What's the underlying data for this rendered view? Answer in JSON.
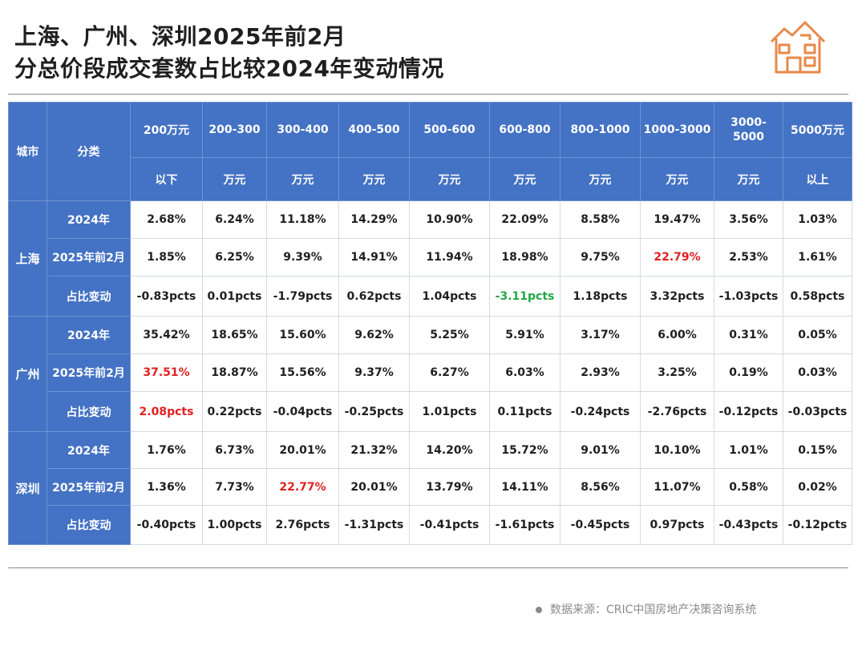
{
  "title": {
    "line1": "上海、广州、深圳2025年前2月",
    "line2": "分总价段成交套数占比较2024年变动情况"
  },
  "logo": {
    "icon": "house-icon",
    "color": "#e8894a"
  },
  "colors": {
    "header_bg": "#4472c4",
    "highlight_up": "#e02020",
    "highlight_down": "#22a845"
  },
  "chart_data": {
    "type": "table",
    "header": {
      "city_label": "城市",
      "category_label": "分类",
      "price_bands": [
        {
          "top": "200万元",
          "bottom": "以下"
        },
        {
          "top": "200-300",
          "bottom": "万元"
        },
        {
          "top": "300-400",
          "bottom": "万元"
        },
        {
          "top": "400-500",
          "bottom": "万元"
        },
        {
          "top": "500-600",
          "bottom": "万元"
        },
        {
          "top": "600-800",
          "bottom": "万元"
        },
        {
          "top": "800-1000",
          "bottom": "万元"
        },
        {
          "top": "1000-3000",
          "bottom": "万元"
        },
        {
          "top": "3000-5000",
          "bottom": "万元"
        },
        {
          "top": "5000万元",
          "bottom": "以上"
        }
      ]
    },
    "cities": [
      {
        "name": "上海",
        "rows": [
          {
            "label": "2024年",
            "values": [
              "2.68%",
              "6.24%",
              "11.18%",
              "14.29%",
              "10.90%",
              "22.09%",
              "8.58%",
              "19.47%",
              "3.56%",
              "1.03%"
            ]
          },
          {
            "label": "2025年前2月",
            "values": [
              "1.85%",
              "6.25%",
              "9.39%",
              "14.91%",
              "11.94%",
              "18.98%",
              "9.75%",
              "22.79%",
              "2.53%",
              "1.61%"
            ]
          },
          {
            "label": "占比变动",
            "values": [
              "-0.83pcts",
              "0.01pcts",
              "-1.79pcts",
              "0.62pcts",
              "1.04pcts",
              "-3.11pcts",
              "1.18pcts",
              "3.32pcts",
              "-1.03pcts",
              "0.58pcts"
            ]
          }
        ]
      },
      {
        "name": "广州",
        "rows": [
          {
            "label": "2024年",
            "values": [
              "35.42%",
              "18.65%",
              "15.60%",
              "9.62%",
              "5.25%",
              "5.91%",
              "3.17%",
              "6.00%",
              "0.31%",
              "0.05%"
            ]
          },
          {
            "label": "2025年前2月",
            "values": [
              "37.51%",
              "18.87%",
              "15.56%",
              "9.37%",
              "6.27%",
              "6.03%",
              "2.93%",
              "3.25%",
              "0.19%",
              "0.03%"
            ]
          },
          {
            "label": "占比变动",
            "values": [
              "2.08pcts",
              "0.22pcts",
              "-0.04pcts",
              "-0.25pcts",
              "1.01pcts",
              "0.11pcts",
              "-0.24pcts",
              "-2.76pcts",
              "-0.12pcts",
              "-0.03pcts"
            ]
          }
        ]
      },
      {
        "name": "深圳",
        "rows": [
          {
            "label": "2024年",
            "values": [
              "1.76%",
              "6.73%",
              "20.01%",
              "21.32%",
              "14.20%",
              "15.72%",
              "9.01%",
              "10.10%",
              "1.01%",
              "0.15%"
            ]
          },
          {
            "label": "2025年前2月",
            "values": [
              "1.36%",
              "7.73%",
              "22.77%",
              "20.01%",
              "13.79%",
              "14.11%",
              "8.56%",
              "11.07%",
              "0.58%",
              "0.02%"
            ]
          },
          {
            "label": "占比变动",
            "values": [
              "-0.40pcts",
              "1.00pcts",
              "2.76pcts",
              "-1.31pcts",
              "-0.41pcts",
              "-1.61pcts",
              "-0.45pcts",
              "0.97pcts",
              "-0.43pcts",
              "-0.12pcts"
            ]
          }
        ]
      }
    ],
    "highlights": [
      {
        "city": 0,
        "row": 1,
        "col": 7,
        "color": "red"
      },
      {
        "city": 0,
        "row": 2,
        "col": 5,
        "color": "green"
      },
      {
        "city": 1,
        "row": 1,
        "col": 0,
        "color": "red"
      },
      {
        "city": 1,
        "row": 2,
        "col": 0,
        "color": "red"
      },
      {
        "city": 2,
        "row": 1,
        "col": 2,
        "color": "red"
      }
    ]
  },
  "source": "数据来源：CRIC中国房地产决策咨询系统"
}
